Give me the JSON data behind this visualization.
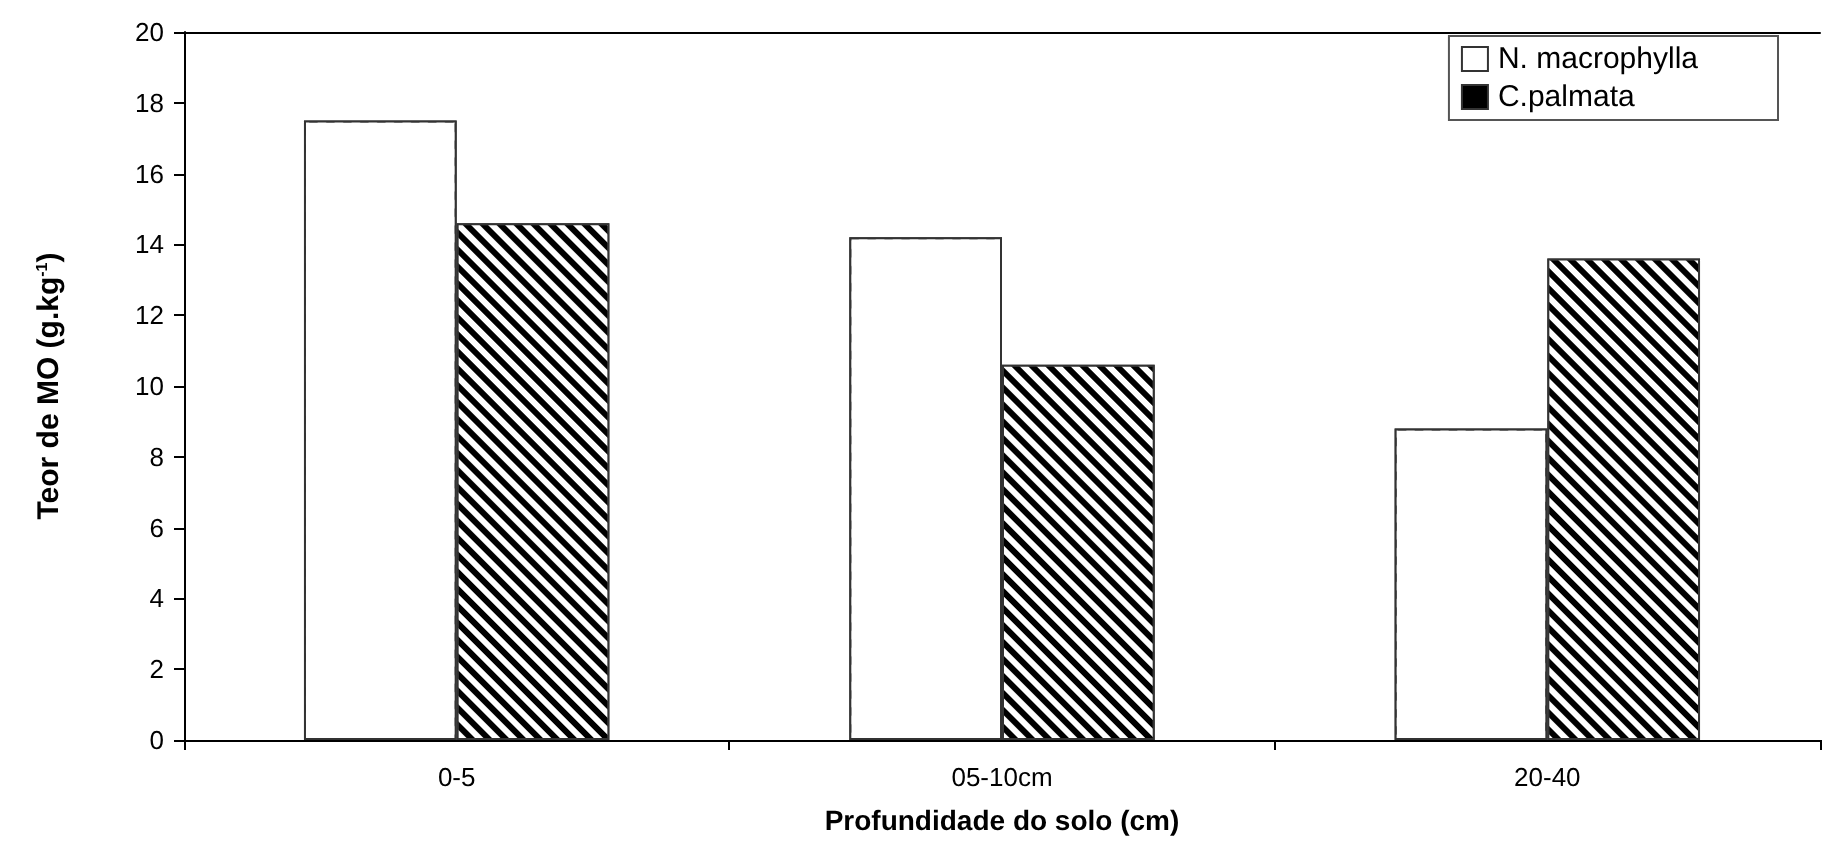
{
  "chart_data": {
    "type": "bar",
    "xlabel": "Profundidade do solo (cm)",
    "ylabel": "Teor de MO (g.kg$^{-1}$)",
    "categories": [
      "0-5",
      "05-10cm",
      "20-40"
    ],
    "series": [
      {
        "name": "N. macrophylla",
        "color": "#ffffff",
        "values": [
          17.5,
          14.2,
          8.8
        ]
      },
      {
        "name": "C.palmata",
        "color": "#000000",
        "values": [
          14.6,
          10.6,
          13.6
        ]
      }
    ],
    "ylim": [
      0,
      20
    ],
    "yticks": [
      0,
      2,
      4,
      6,
      8,
      10,
      12,
      14,
      16,
      18,
      20
    ],
    "grid": false,
    "legend": "top right"
  }
}
